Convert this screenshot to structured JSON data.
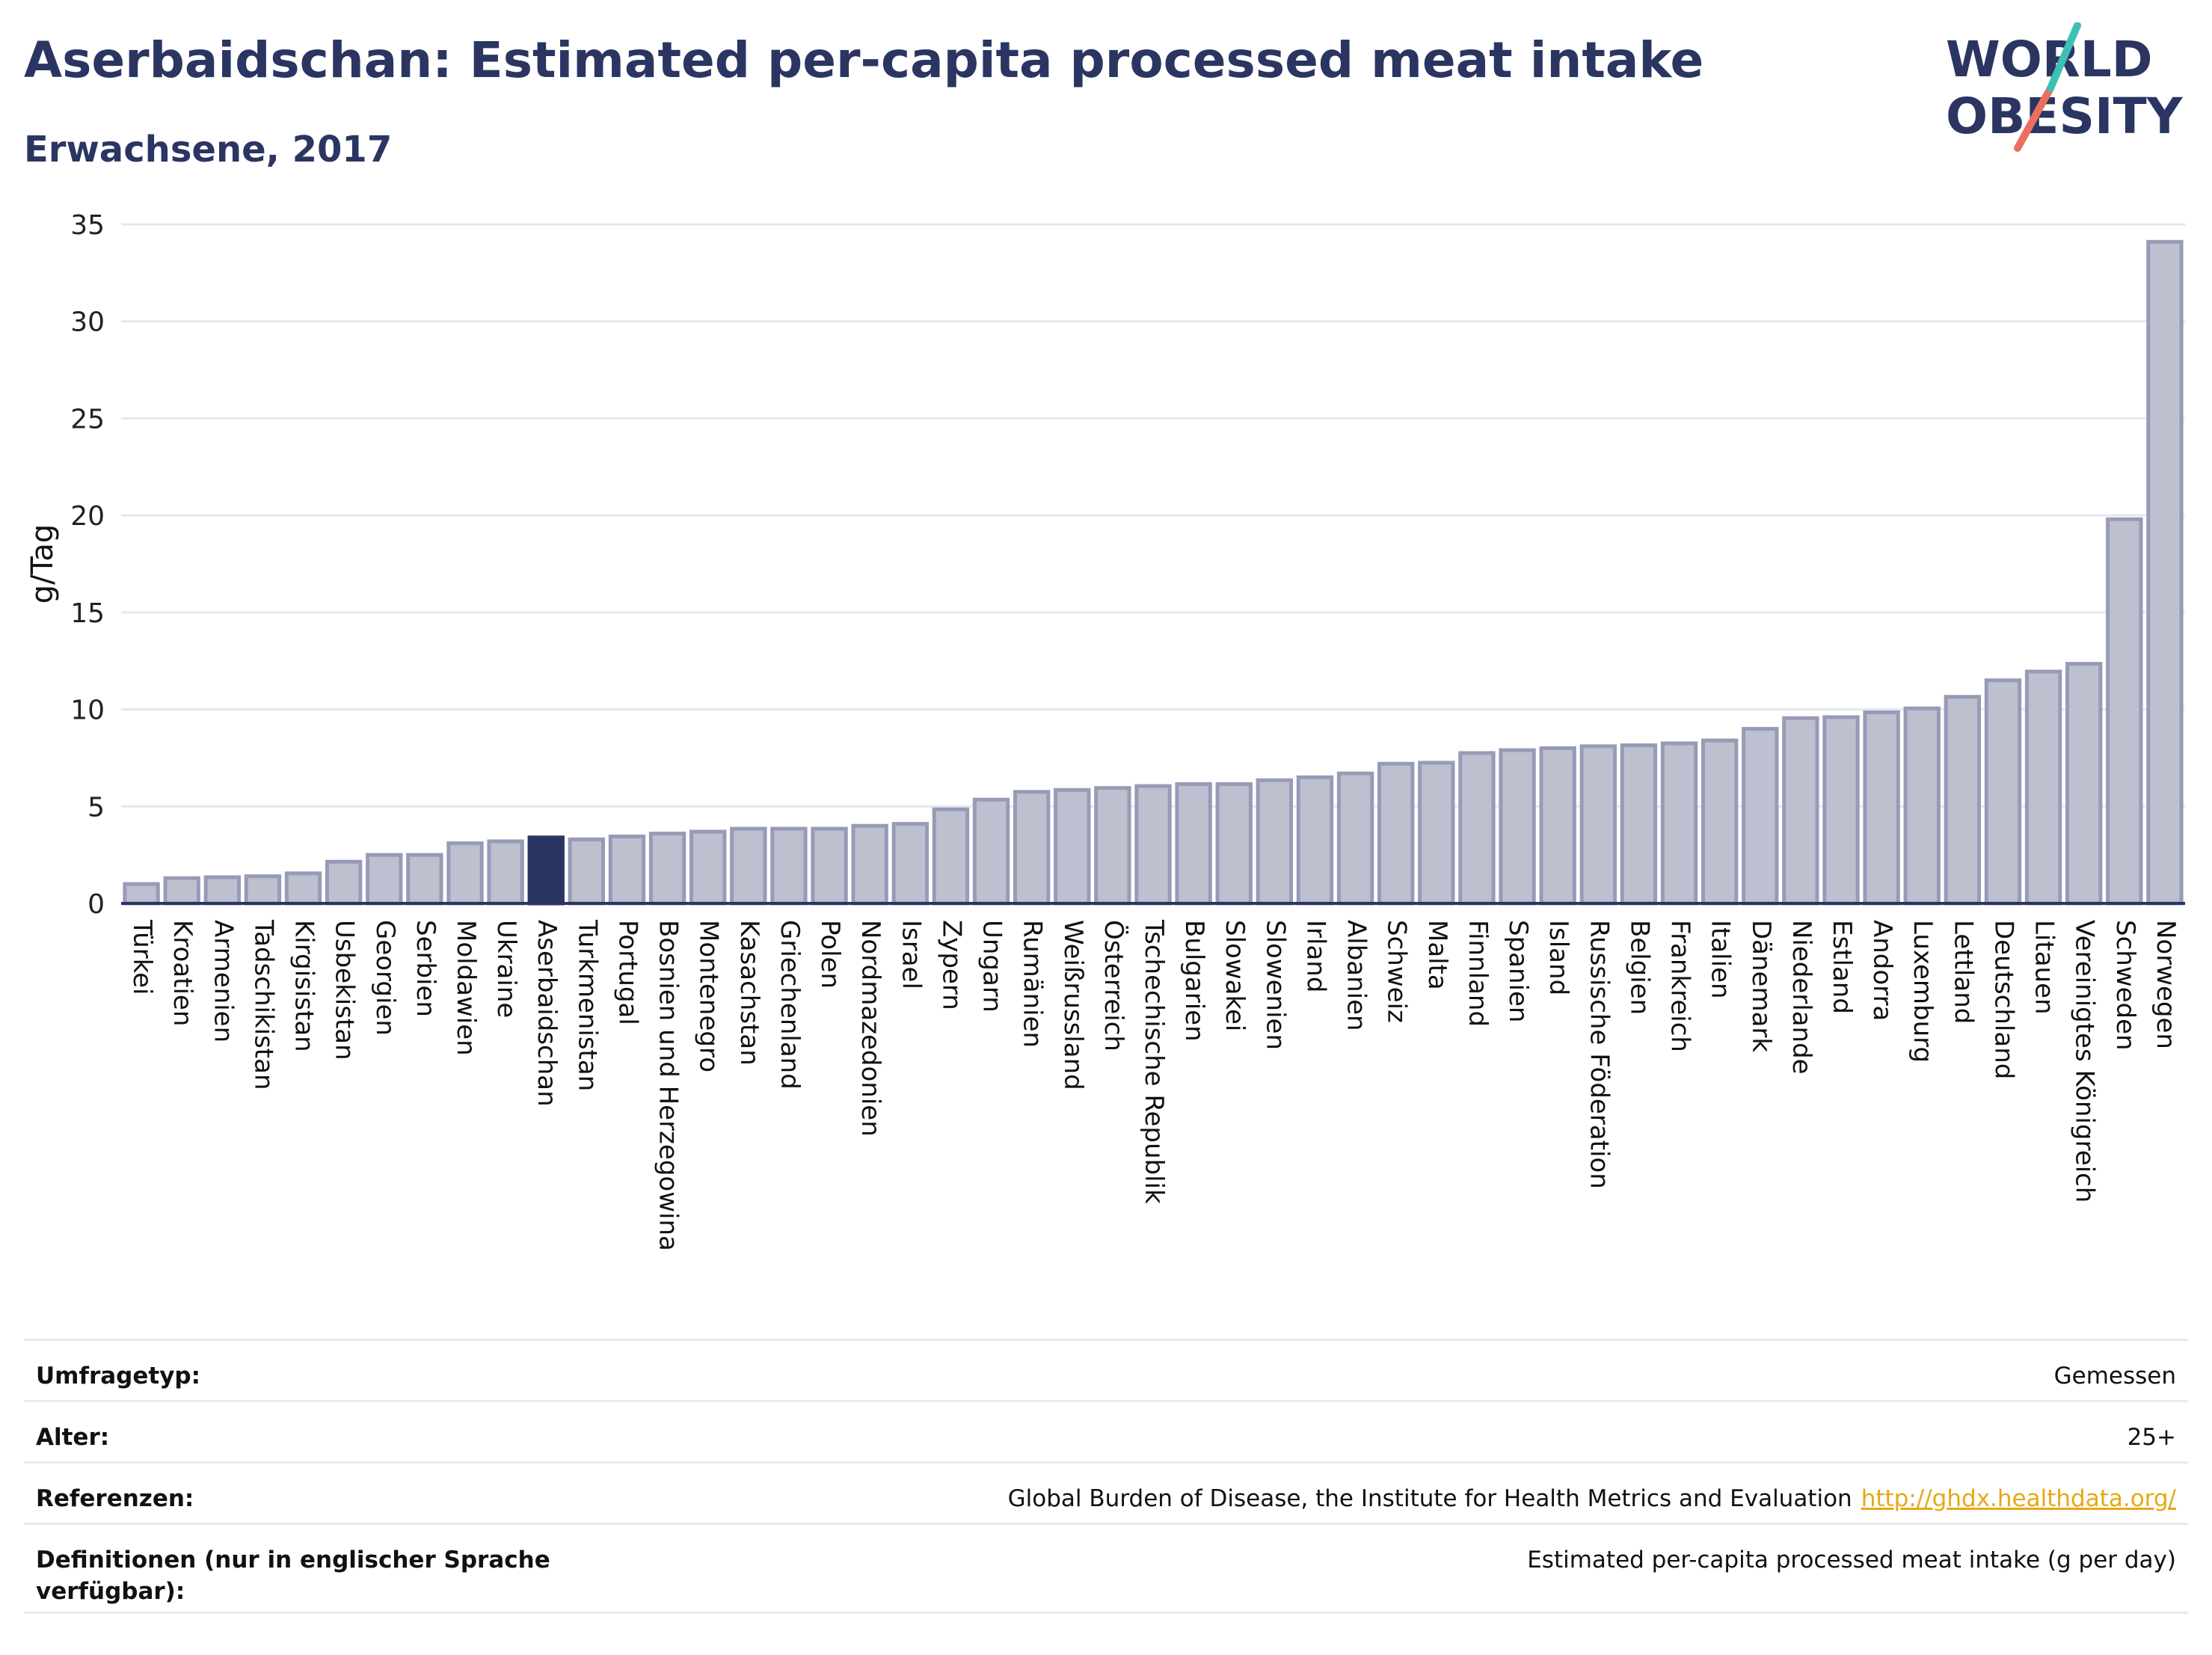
{
  "header": {
    "title": "Aserbaidschan: Estimated per-capita processed meat intake",
    "subtitle": "Erwachsene, 2017"
  },
  "logo": {
    "line1": "WORLD",
    "line2": "OBESITY"
  },
  "colors": {
    "bar": "#bcc0cf",
    "bar_stroke": "#979bb6",
    "highlight": "#2b3562",
    "grid": "#e6e7ee",
    "axis": "#2b3562",
    "title": "#2b3562",
    "link": "#e6a817"
  },
  "chart_data": {
    "type": "bar",
    "ylabel": "g/Tag",
    "ylim": [
      0,
      35
    ],
    "yticks": [
      0,
      5,
      10,
      15,
      20,
      25,
      30,
      35
    ],
    "highlight": "Aserbaidschan",
    "categories": [
      "Türkei",
      "Kroatien",
      "Armenien",
      "Tadschikistan",
      "Kirgisistan",
      "Usbekistan",
      "Georgien",
      "Serbien",
      "Moldawien",
      "Ukraine",
      "Aserbaidschan",
      "Turkmenistan",
      "Portugal",
      "Bosnien und Herzegowina",
      "Montenegro",
      "Kasachstan",
      "Griechenland",
      "Polen",
      "Nordmazedonien",
      "Israel",
      "Zypern",
      "Ungarn",
      "Rumänien",
      "Weißrussland",
      "Österreich",
      "Tschechische Republik",
      "Bulgarien",
      "Slowakei",
      "Slowenien",
      "Irland",
      "Albanien",
      "Schweiz",
      "Malta",
      "Finnland",
      "Spanien",
      "Island",
      "Russische Föderation",
      "Belgien",
      "Frankreich",
      "Italien",
      "Dänemark",
      "Niederlande",
      "Estland",
      "Andorra",
      "Luxemburg",
      "Lettland",
      "Deutschland",
      "Litauen",
      "Vereinigtes Königreich",
      "Schweden",
      "Norwegen"
    ],
    "values": [
      1.0,
      1.3,
      1.35,
      1.4,
      1.55,
      2.15,
      2.5,
      2.5,
      3.1,
      3.2,
      3.4,
      3.3,
      3.45,
      3.6,
      3.7,
      3.85,
      3.85,
      3.85,
      4.0,
      4.1,
      4.85,
      5.35,
      5.75,
      5.85,
      5.95,
      6.05,
      6.15,
      6.15,
      6.35,
      6.5,
      6.7,
      7.2,
      7.25,
      7.75,
      7.9,
      8.0,
      8.1,
      8.15,
      8.25,
      8.4,
      9.0,
      9.55,
      9.6,
      9.85,
      10.05,
      10.65,
      11.5,
      11.95,
      12.35,
      19.8,
      34.1
    ]
  },
  "meta": [
    {
      "label": "Umfragetyp:",
      "value": "Gemessen"
    },
    {
      "label": "Alter:",
      "value": "25+"
    },
    {
      "label": "Referenzen:",
      "value": "Global Burden of Disease, the Institute for Health Metrics and Evaluation",
      "link": "http://ghdx.healthdata.org/"
    },
    {
      "label": "Definitionen (nur in englischer Sprache verfügbar):",
      "value": "Estimated per-capita processed meat intake (g per day)"
    }
  ]
}
